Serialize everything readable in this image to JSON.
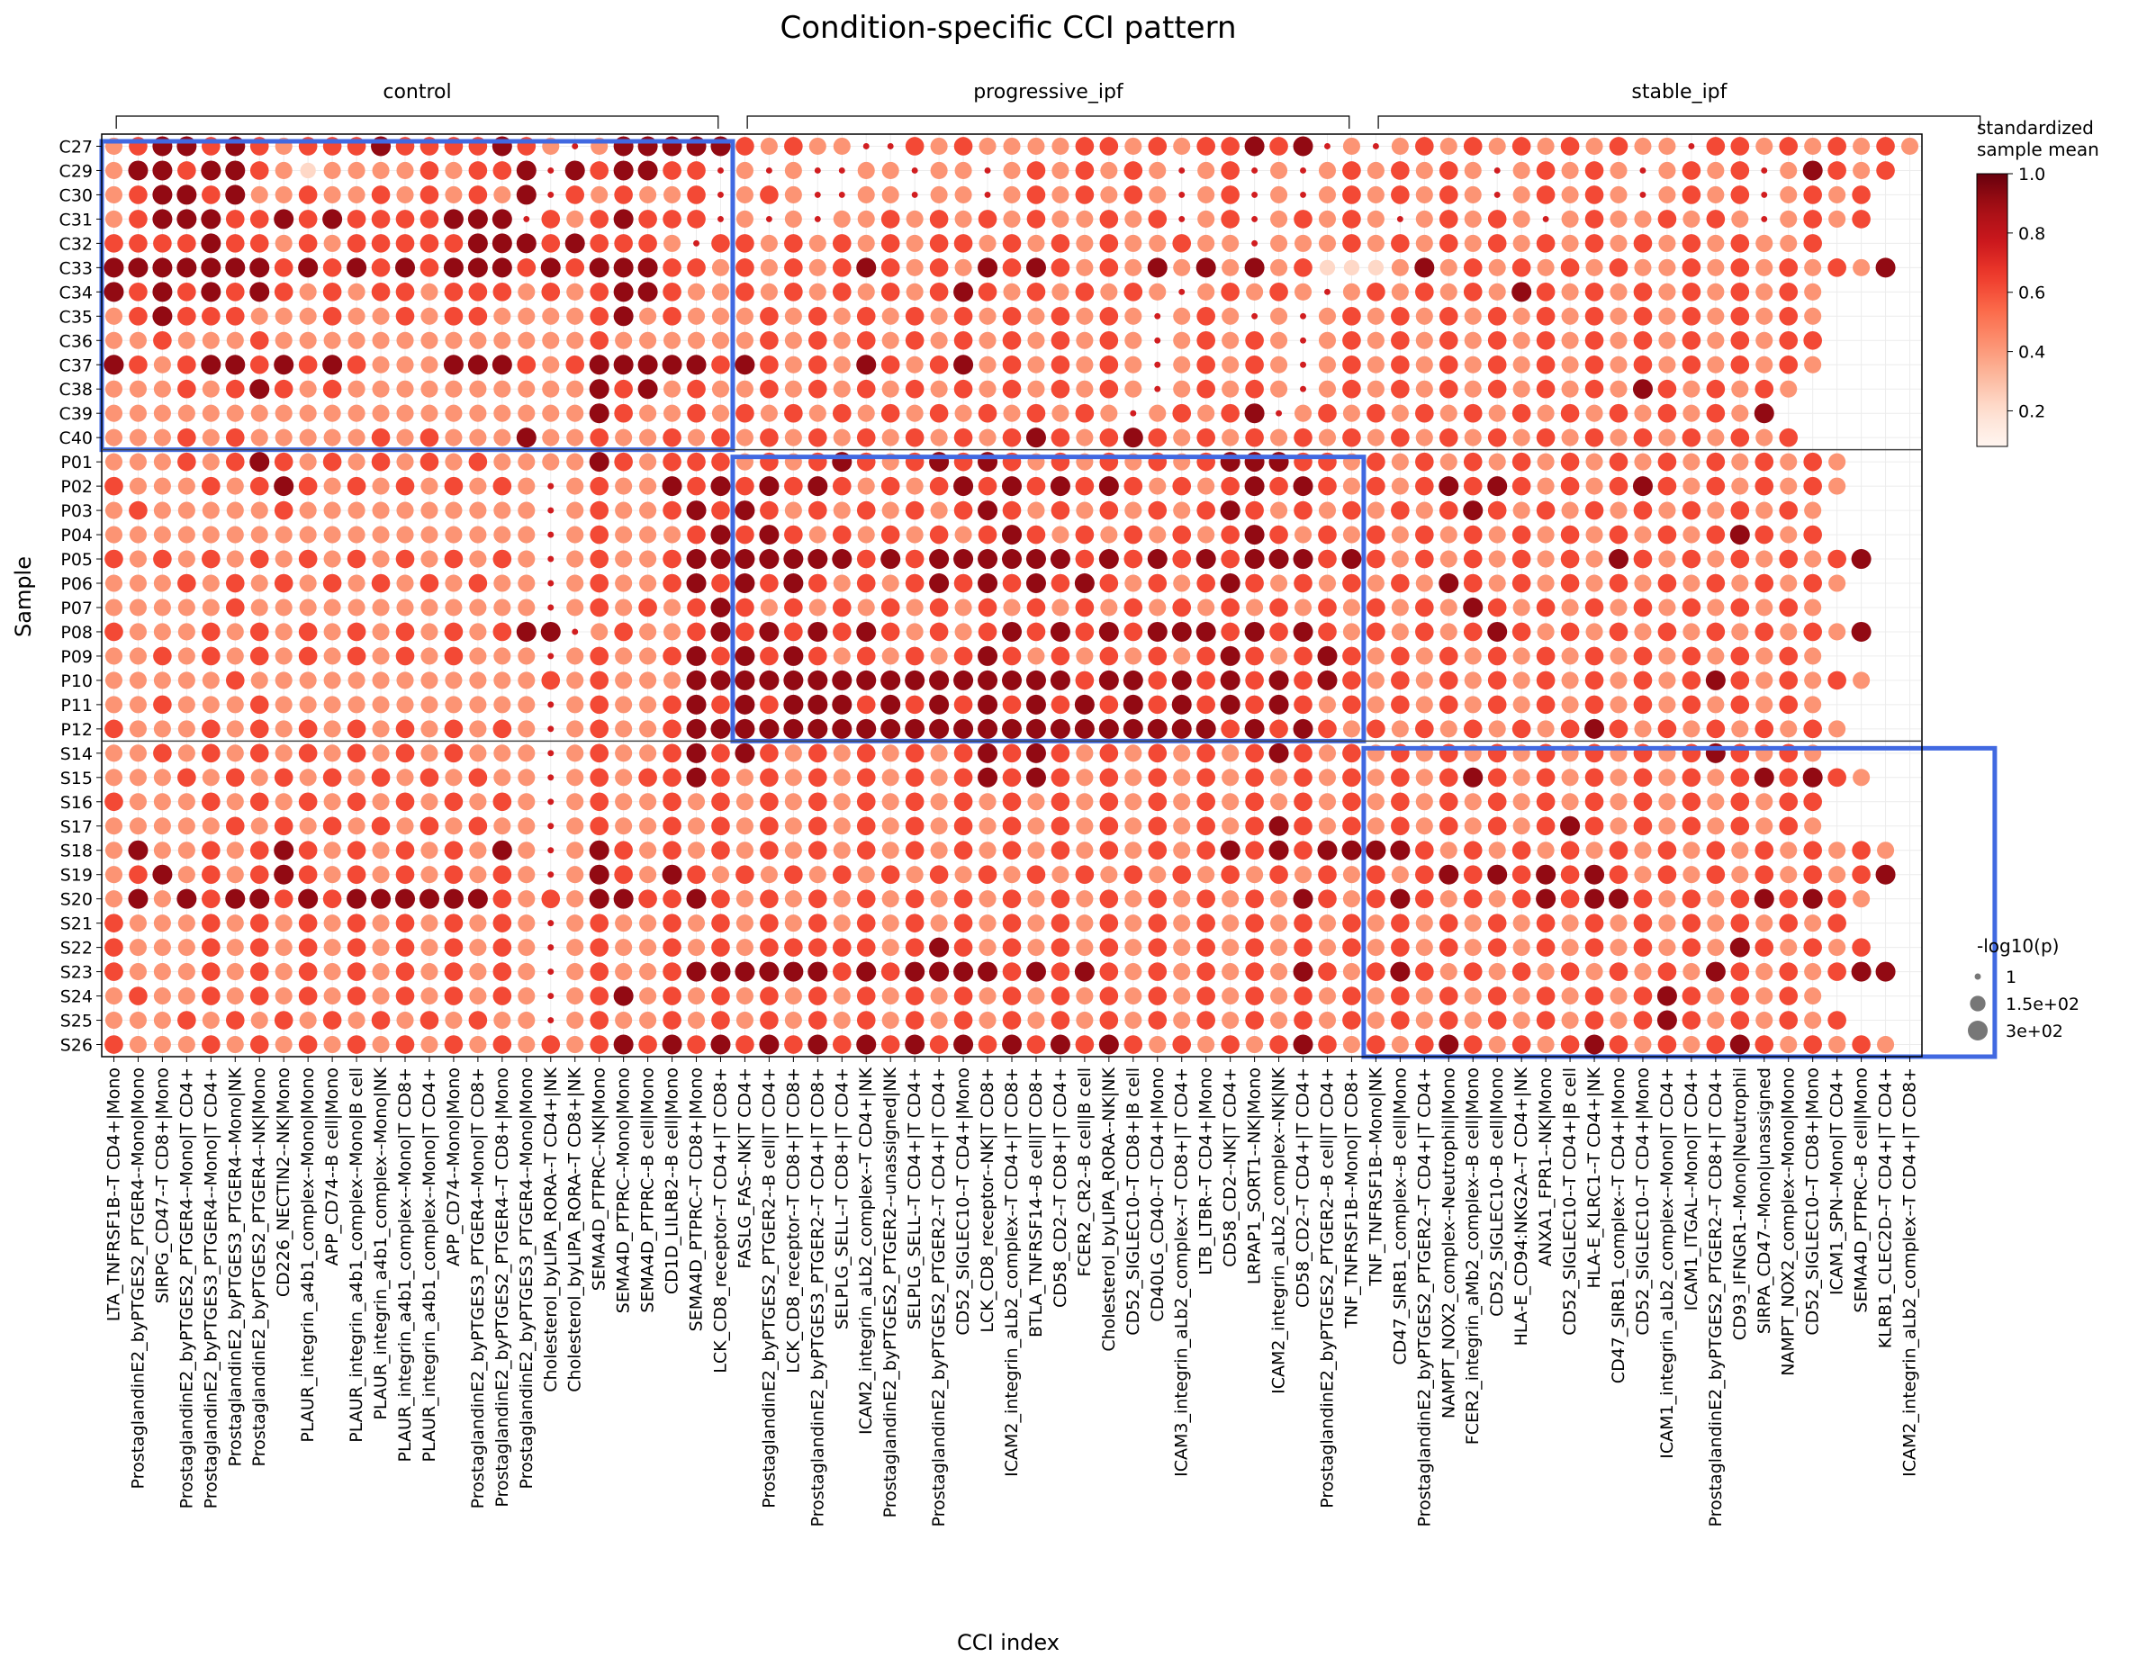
{
  "chart_data": {
    "type": "scatter",
    "title": "Condition-specific CCI pattern",
    "xlabel": "CCI index",
    "ylabel": "Sample",
    "groups": [
      {
        "name": "control",
        "from": 0,
        "to": 25
      },
      {
        "name": "progressive_ipf",
        "from": 26,
        "to": 51
      },
      {
        "name": "stable_ipf",
        "from": 52,
        "to": 77
      }
    ],
    "samples": [
      "C27",
      "C29",
      "C30",
      "C31",
      "C32",
      "C33",
      "C34",
      "C35",
      "C36",
      "C37",
      "C38",
      "C39",
      "C40",
      "P01",
      "P02",
      "P03",
      "P04",
      "P05",
      "P06",
      "P07",
      "P08",
      "P09",
      "P10",
      "P11",
      "P12",
      "S14",
      "S15",
      "S16",
      "S17",
      "S18",
      "S19",
      "S20",
      "S21",
      "S22",
      "S23",
      "S24",
      "S25",
      "S26"
    ],
    "cci": [
      "LTA_TNFRSF1B--T CD4+|Mono",
      "ProstaglandinE2_byPTGES2_PTGER4--Mono|Mono",
      "SIRPG_CD47--T CD8+|Mono",
      "ProstaglandinE2_byPTGES2_PTGER4--Mono|T CD4+",
      "ProstaglandinE2_byPTGES3_PTGER4--Mono|T CD4+",
      "ProstaglandinE2_byPTGES3_PTGER4--Mono|NK",
      "ProstaglandinE2_byPTGES2_PTGER4--NK|Mono",
      "CD226_NECTIN2--NK|Mono",
      "PLAUR_integrin_a4b1_complex--Mono|Mono",
      "APP_CD74--B cell|Mono",
      "PLAUR_integrin_a4b1_complex--Mono|B cell",
      "PLAUR_integrin_a4b1_complex--Mono|NK",
      "PLAUR_integrin_a4b1_complex--Mono|T CD8+",
      "PLAUR_integrin_a4b1_complex--Mono|T CD4+",
      "APP_CD74--Mono|Mono",
      "ProstaglandinE2_byPTGES3_PTGER4--Mono|T CD8+",
      "ProstaglandinE2_byPTGES2_PTGER4--T CD8+|Mono",
      "ProstaglandinE2_byPTGES3_PTGER4--Mono|Mono",
      "Cholesterol_byLIPA_RORA--T CD4+|NK",
      "Cholesterol_byLIPA_RORA--T CD8+|NK",
      "SEMA4D_PTPRC--NK|Mono",
      "SEMA4D_PTPRC--Mono|Mono",
      "SEMA4D_PTPRC--B cell|Mono",
      "CD1D_LILRB2--B cell|Mono",
      "SEMA4D_PTPRC--T CD8+|Mono",
      "LCK_CD8_receptor--T CD4+|T CD8+",
      "FASLG_FAS--NK|T CD4+",
      "ProstaglandinE2_byPTGES2_PTGER2--B cell|T CD4+",
      "LCK_CD8_receptor--T CD8+|T CD8+",
      "ProstaglandinE2_byPTGES3_PTGER2--T CD4+|T CD8+",
      "SELPLG_SELL--T CD8+|T CD4+",
      "ICAM2_integrin_aLb2_complex--T CD4+|NK",
      "ProstaglandinE2_byPTGES2_PTGER2--unassigned|NK",
      "SELPLG_SELL--T CD4+|T CD4+",
      "ProstaglandinE2_byPTGES2_PTGER2--T CD4+|T CD4+",
      "CD52_SIGLEC10--T CD4+|Mono",
      "LCK_CD8_receptor--NK|T CD8+",
      "ICAM2_integrin_aLb2_complex--T CD4+|T CD8+",
      "BTLA_TNFRSF14--B cell|T CD8+",
      "CD58_CD2--T CD8+|T CD4+",
      "FCER2_CR2--B cell|B cell",
      "Cholesterol_byLIPA_RORA--NK|NK",
      "CD52_SIGLEC10--T CD8+|B cell",
      "CD40LG_CD40--T CD4+|Mono",
      "ICAM3_integrin_aLb2_complex--T CD8+|T CD4+",
      "LTB_LTBR--T CD4+|Mono",
      "CD58_CD2--NK|T CD4+",
      "LRPAP1_SORT1--NK|Mono",
      "ICAM2_integrin_aLb2_complex--NK|NK",
      "CD58_CD2--T CD4+|T CD4+",
      "ProstaglandinE2_byPTGES2_PTGER2--B cell|T CD4+",
      "TNF_TNFRSF1B--Mono|T CD8+",
      "TNF_TNFRSF1B--Mono|NK",
      "CD47_SIRB1_complex--B cell|Mono",
      "ProstaglandinE2_byPTGES2_PTGER2--T CD4+|T CD4+",
      "NAMPT_NOX2_complex--Neutrophil|Mono",
      "FCER2_integrin_aMb2_complex--B cell|Mono",
      "CD52_SIGLEC10--B cell|Mono",
      "HLA-E_CD94:NKG2A--T CD4+|NK",
      "ANXA1_FPR1--NK|Mono",
      "CD52_SIGLEC10--T CD4+|B cell",
      "HLA-E_KLRC1--T CD4+|NK",
      "CD47_SIRB1_complex--T CD4+|Mono",
      "CD52_SIGLEC10--T CD4+|Mono",
      "ICAM1_integrin_aLb2_complex--Mono|T CD4+",
      "ICAM1_ITGAL--Mono|T CD4+",
      "ProstaglandinE2_byPTGES2_PTGER2--T CD8+|T CD4+",
      "CD93_IFNGR1--Mono|Neutrophil",
      "SIRPA_CD47--Mono|unassigned",
      "NAMPT_NOX2_complex--Mono|Mono",
      "CD52_SIGLEC10--T CD8+|Mono",
      "ICAM1_SPN--Mono|T CD4+",
      "SEMA4D_PTPRC--B cell|Mono",
      "KLRB1_CLEC2D--T CD4+|T CD4+",
      "ICAM2_integrin_aLb2_complex--T CD4+|T CD8+"
    ],
    "value_range": [
      0.08,
      1.0
    ],
    "colorbar": {
      "title_line1": "standardized",
      "title_line2": "sample mean",
      "ticks": [
        "0.2",
        "0.4",
        "0.6",
        "0.8",
        "1.0"
      ],
      "tick_values": [
        0.2,
        0.4,
        0.6,
        0.8,
        1.0
      ],
      "cmap": "Reds"
    },
    "size_legend": {
      "title": "-log10(p)",
      "entries": [
        "1",
        "1.5e+02",
        "3e+02"
      ],
      "entry_values": [
        1,
        150,
        300
      ]
    },
    "grid": true,
    "note_values": "Per-cell values approximated from the image; each row string encodes 78 columns with levels: '.'=absent, 's'=small faint, 'a'=light, 'b'=mid, 'c'=red, 'd'=dark red.",
    "rows": [
      "bcddcdcbcccdccccdcbsbdddddcbcbbsscbcbbbbccbcbccdcdsbsbcbcbcbcbcbbsccbcbcbcb",
      "bddcddcbabbbbcbccdsdcddccsbsbssbbsbbsbcbcbcbsbcsbsbcbcbcbsbcbcbsbcbcsbdcbc",
      "bcddcdbbcbbcbcbcbdscbcbbcsbcbssbbsbbsbcbcbcbsbcsbsbcbcbcbsbcbcbsbcbcsbcbc",
      "bcdddccdcdccccdddscbcdcccsbsbsbbcbcbcbcbbcbcsbcsbcbcbsbcbcbsbcbbcbcbsbcbc",
      "ccccdccbcbcccccdddcdcccbsccbcbcbcbccbcbcbcbbcbbsbbbcbcbcbcbcbcbcbcbcbbc",
      "dddddddcdcdcdcdddcdcdddccbcbcbcdcbcbdcdcbcbdbdbdbcaaabdbcbcbcbcbbcbcbcbcbd",
      "dcdcdcdcbcbccbcccbcbcddcbbcbcbcbcbcdcbcbcbcbsbcbcbsbcbcbcbdcbcbcbcbcbcb",
      "bcdcccbbbcbbcbccbbbbcdbcbbbcbcbcbcbcbcbcbcbsbcbsbsbcbcbcbcbcbcbcbcbcbcb",
      "bbcbbbcbbbbbbbbbbbbbcbbbbbbcbcbcbcbcbcbcbcbsbcbcbsbcbcbcbcbcbcbcbcbcbcc",
      "dcbcddcdcdcbbbdddcbcdddddcdcbcbdcbcdbcbcbcbsbcbcbsbcbcbcbcbcbcbcbcbcbcb",
      "bbbcbcdcbcbbbbbbbbbbdcdbcbbcbcbcbcbcbcbcbcbsbcbcbsbcbcbcbcbcbcbdcbcbcb",
      "bbbbbbbbbbbbbbbbbbbbdcbbcbcbcbcbcbcbcbcbcbsbcbcdsbcbcbcbcbcbcbcbcbcbd",
      "bbbcbcbbbbbcbcbbbdbbcbbcbcbcbcbcbcbcbcdcbcdcbcbcbcbcbcbcbcbcbcbcbcbcbc",
      "bbbcbcdcbcbcbcbcbbbbdcbcccbcbcdcbcdcdcbcbcbcbcdddccbcbcbcbcbcbcbcbcbcbcb",
      "cbbbcbcdcbcbcbcbcbsbcbbdcdcdcdcbcbcdcdcdcdcbcbcdcdcbcbcdcdcbcbcdcbcbcbcb",
      "bcbbbbbcbbbbbbbbbbsbcbbcdcdcbcbcbcbcdcbcbcbcbcdcbcbcbcbcdcbcbcbcbcbcbcb",
      "bbbbbbbbbbbbbbbbbbsbcbbbcdcdcbcbcbcbcdcbcbcbcbcdcbcbcbcbcbcbcbcbcbcdcbc",
      "cbcbcbcbcbcbcbcbcbsbcbbcdddddddcdcddddddcdcdcdcdddcdcbcbcbcbcbdcbcbcbcbcd",
      "bbbcbcbcbcbcbcbcbbsbcbbcdcdcdcbcbcdcdcdcdcbcbcdcbcbcbcbdcbcbcbcbcbcbcbcb",
      "bbbbbcbbbbbbbbbbbbsbcbcbcdcbcbcbcbcbcbcbcbcbcbcbcbcbcbcbdcbcbcbcbcbcbcb",
      "cbbbcbcbcbcbcbcbcddsbcbbcdcdcdcdcbcbcdcdcdcdddcdcdcbcbcbcdcbcbcbcbcbcbcbd",
      "bbcbcbcbcbcbcbcbbbsbcbbcdcdcdcbcbcbcdcbcbcbcbcdcbcdcbcbcbcbcbcbcbcbcbcb",
      "bbbbbcbbbbbbbbbbbbcbcbbbddddddddddddddddcddcdcdcdcdcbcbcbcbcbcbcbcdcbcbcb",
      "bbcbbbcbbbbbbbbbbbsbcbbcdcdcdddcdcdcdcdcdcdcdcdcdcbcbcbcbcbcbcbcbcbcbcb",
      "cbbbcbcbcbcbcbcbcbsbcbbcddddddddddddddddddddddcdcdcbcbcbcbcbcdcbcbcbcbcb",
      "bbcbcbcbcbcbcbcbbbsbcbbcdcdcbcbcbcbcdcdcbcbcbcbcdcbcbcbcbcbcbcbcbcdcbcb",
      "bbbcbcbcbcbcbcbcbbsbcbccdcbcbcbcbcbcdcdcbcbcbcbcbcbcbcbcdcbcbcbcbcbcdcdcb",
      "cbbbcbcbcbcbcbcbcbsbcbbcbcbcbcbcbcbcbcbcbcbcbcbcbcbcbcbcbcbcbcbcbcbcbcc",
      "bbbbbcbcbcbcbcbcbbsbcbbcbcbcbcbcbcbcbcbcbcbcbcbcdcbcbcbcbcbcdcbcbcbcbcb",
      "bdbbcbcdcbcbcbcbdbsbdcbcbcbcbcbcbcbcbcbcbcbcbcdcdcddddcbcbcbcbcbcbcbcbcbcb",
      "bcdbcbcdcbcbcbcbcbsbdcbdcbcbcbcbcbcbcbcbcbcbcbcbcbcbcbcdcdcdcdcbcbcbcbcbcd",
      "bdbdcddcdcddddddcbcbddccdcbcbcbcbcbcbcbcbcbcbcbcbdcbcdcbcbcdcddcbcbcdcdcb",
      "cbbbcbcbcbcbcbcbcbsbcbbcbcbcbcbcbcbcbcbcbcbcbcbcbcbcbcbcbcbcbcbcbcbcbcbc",
      "cbbbcbcbcbcbcbcbcbsbcbbcbcbcccccbcdcbcbcbcbcbcbcbcbcbcbcbcbcbcbcbcbdcbcbc",
      "cbbbcbcbcbcbcbcbcbsbcbbcddddddcdcddddcdcdcbcbcbcbdcbcdcbcbcbcbcbcbdcbcbcdd",
      "bcbbcbcbcbcbcbcbcbsbcdbcbcbcbcbcbcbcbcbcbcbcbcbcbcbcbcbcbcbcbcbcdcbcbcb",
      "bbbcbcbcbcbcbcbcbbsbcbbcbcbcbcbcbcbcbcbcbcbcbcbcbcbcbcbcbcbcbcbcdcbcbcbc",
      "cbbbcbcbcbcbcbcbcbcbcdcdcdcdcdcdcdcdcdcdcdcbcbcbcdcbcbcdcbcbcdcbcbcdcbcbcb"
    ]
  }
}
